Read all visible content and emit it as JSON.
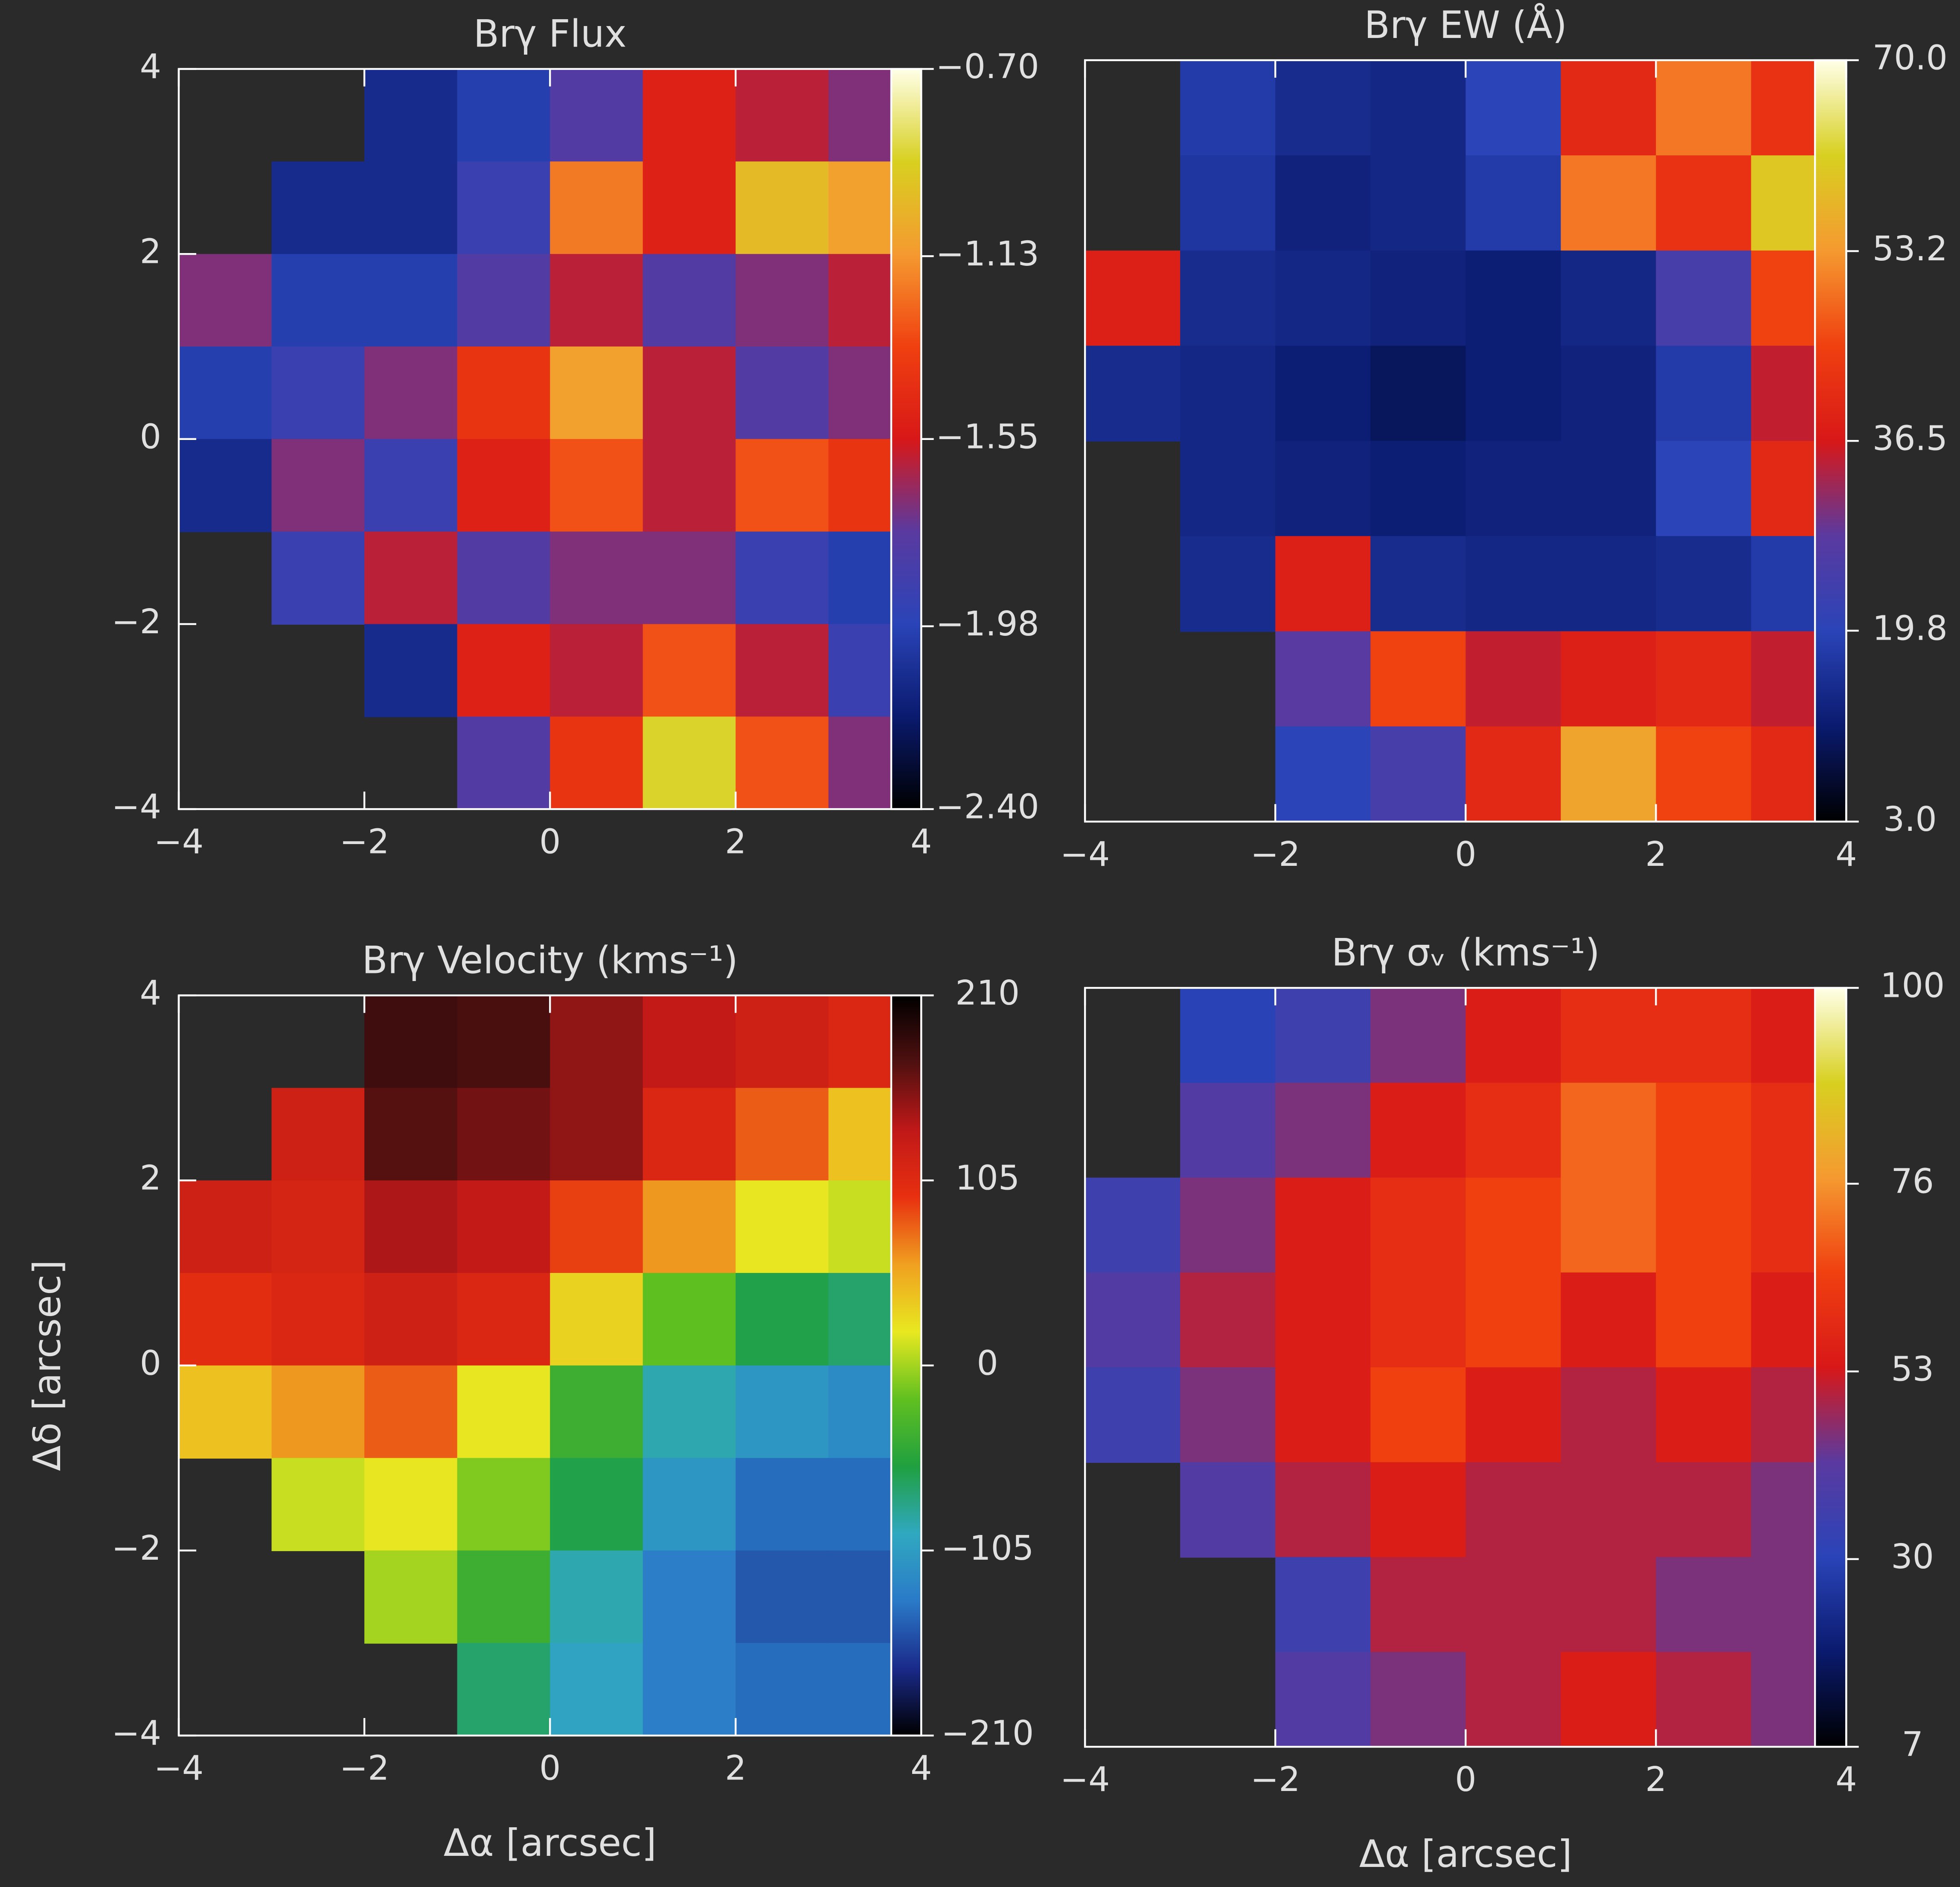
{
  "chart_data": [
    {
      "type": "heatmap",
      "title": "Brγ Flux",
      "xlim": [
        -4,
        4
      ],
      "ylim": [
        -4,
        4
      ],
      "xticks": [
        {
          "value": -4,
          "label": "−4"
        },
        {
          "value": -2,
          "label": "−2"
        },
        0,
        2,
        4
      ],
      "yticks": [
        {
          "value": -4,
          "label": "−4"
        },
        {
          "value": -2,
          "label": "−2"
        },
        0,
        2,
        4
      ],
      "values": [
        [
          null,
          null,
          -2.1,
          -2.0,
          -1.8,
          -1.5,
          -1.6,
          -1.7
        ],
        [
          null,
          -2.1,
          -2.1,
          -1.9,
          -1.2,
          -1.5,
          -1.0,
          -1.1
        ],
        [
          -1.7,
          -2.0,
          -2.0,
          -1.8,
          -1.6,
          -1.8,
          -1.7,
          -1.6
        ],
        [
          -2.0,
          -1.9,
          -1.7,
          -1.4,
          -1.1,
          -1.6,
          -1.8,
          -1.7
        ],
        [
          -2.1,
          -1.7,
          -1.9,
          -1.5,
          -1.3,
          -1.6,
          -1.3,
          -1.4
        ],
        [
          null,
          -1.9,
          -1.6,
          -1.8,
          -1.7,
          -1.7,
          -1.9,
          -2.0
        ],
        [
          null,
          null,
          -2.1,
          -1.5,
          -1.6,
          -1.3,
          -1.6,
          -1.9
        ],
        [
          null,
          null,
          null,
          -1.8,
          -1.4,
          -0.9,
          -1.3,
          -1.7
        ]
      ],
      "clim": [
        -2.4,
        -0.7
      ],
      "cticks": [
        {
          "value": -2.4,
          "label": "−2.40"
        },
        {
          "value": -1.98,
          "label": "−1.98"
        },
        {
          "value": -1.55,
          "label": "−1.55"
        },
        {
          "value": -1.13,
          "label": "−1.13"
        },
        {
          "value": -0.7,
          "label": "−0.70"
        }
      ],
      "colormap": [
        "#000000",
        "#0a1a6e",
        "#2a44b8",
        "#5a3aa0",
        "#d81818",
        "#f04010",
        "#f59a30",
        "#d8d020",
        "#ffffe8"
      ]
    },
    {
      "type": "heatmap",
      "title": "Brγ EW (Å)",
      "xlim": [
        -4,
        4
      ],
      "ylim": [
        -4,
        4
      ],
      "xticks": [
        {
          "value": -4,
          "label": "−4"
        },
        {
          "value": -2,
          "label": "−2"
        },
        0,
        2,
        4
      ],
      "values": [
        [
          null,
          18,
          15,
          14,
          20,
          40,
          50,
          42
        ],
        [
          null,
          17,
          13,
          14,
          18,
          50,
          42,
          60
        ],
        [
          38,
          15,
          14,
          13,
          12,
          14,
          25,
          45
        ],
        [
          15,
          14,
          12,
          10,
          12,
          13,
          18,
          35
        ],
        [
          null,
          14,
          13,
          12,
          13,
          13,
          20,
          40
        ],
        [
          null,
          15,
          38,
          15,
          14,
          14,
          15,
          18
        ],
        [
          null,
          null,
          28,
          45,
          35,
          38,
          40,
          35
        ],
        [
          null,
          null,
          20,
          25,
          40,
          55,
          45,
          40
        ]
      ],
      "clim": [
        3,
        70
      ],
      "cticks": [
        {
          "value": 3,
          "label": "3.0"
        },
        19.8,
        36.5,
        53.2,
        {
          "value": 70,
          "label": "70.0"
        }
      ],
      "colormap": [
        "#000000",
        "#0a1a6e",
        "#2a44b8",
        "#5a3aa0",
        "#d81818",
        "#f04010",
        "#f59a30",
        "#d8d020",
        "#ffffe8"
      ]
    },
    {
      "type": "heatmap",
      "title": "Brγ Velocity (kms⁻¹)",
      "xlabel": "Δα [arcsec]",
      "ylabel": "Δδ [arcsec]",
      "xlim": [
        -4,
        4
      ],
      "ylim": [
        -4,
        4
      ],
      "xticks": [
        {
          "value": -4,
          "label": "−4"
        },
        {
          "value": -2,
          "label": "−2"
        },
        0,
        2,
        4
      ],
      "yticks": [
        {
          "value": -4,
          "label": "−4"
        },
        {
          "value": -2,
          "label": "−2"
        },
        0,
        2,
        4
      ],
      "values": [
        [
          null,
          null,
          180,
          175,
          150,
          130,
          120,
          110
        ],
        [
          null,
          120,
          170,
          160,
          150,
          110,
          80,
          40
        ],
        [
          120,
          115,
          140,
          130,
          90,
          60,
          20,
          10
        ],
        [
          100,
          110,
          120,
          110,
          30,
          -20,
          -60,
          -70
        ],
        [
          40,
          60,
          80,
          20,
          -40,
          -90,
          -110,
          -120
        ],
        [
          null,
          10,
          20,
          -10,
          -60,
          -110,
          -140,
          -140
        ],
        [
          null,
          null,
          0,
          -40,
          -90,
          -130,
          -150,
          -150
        ],
        [
          null,
          null,
          null,
          -70,
          -100,
          -130,
          -140,
          -140
        ]
      ],
      "clim": [
        -210,
        210
      ],
      "cticks": [
        {
          "value": -210,
          "label": "−210"
        },
        {
          "value": -105,
          "label": "−105"
        },
        0,
        105,
        210
      ],
      "colormap": [
        "#000000",
        "#1a2a8a",
        "#2a7ac8",
        "#30a8c0",
        "#20a040",
        "#60c020",
        "#e8e820",
        "#f0a020",
        "#e83010",
        "#c01818",
        "#501010",
        "#000000"
      ]
    },
    {
      "type": "heatmap",
      "title": "Brγ σᵥ (kms⁻¹)",
      "xlabel": "Δα [arcsec]",
      "xlim": [
        -4,
        4
      ],
      "ylim": [
        -4,
        4
      ],
      "xticks": [
        {
          "value": -4,
          "label": "−4"
        },
        {
          "value": -2,
          "label": "−2"
        },
        0,
        2,
        4
      ],
      "values": [
        [
          null,
          30,
          35,
          45,
          55,
          60,
          60,
          55
        ],
        [
          null,
          40,
          45,
          55,
          60,
          70,
          65,
          60
        ],
        [
          35,
          45,
          55,
          60,
          65,
          70,
          65,
          60
        ],
        [
          40,
          50,
          55,
          60,
          65,
          55,
          65,
          55
        ],
        [
          35,
          45,
          55,
          65,
          55,
          50,
          55,
          50
        ],
        [
          null,
          40,
          50,
          55,
          50,
          50,
          50,
          45
        ],
        [
          null,
          null,
          35,
          50,
          50,
          50,
          45,
          45
        ],
        [
          null,
          null,
          40,
          45,
          50,
          55,
          50,
          45
        ]
      ],
      "clim": [
        7,
        100
      ],
      "cticks": [
        7,
        30,
        53,
        76,
        100
      ],
      "colormap": [
        "#000000",
        "#0a1a6e",
        "#2a44b8",
        "#5a3aa0",
        "#d81818",
        "#f04010",
        "#f59a30",
        "#d8d020",
        "#ffffe8"
      ]
    }
  ]
}
